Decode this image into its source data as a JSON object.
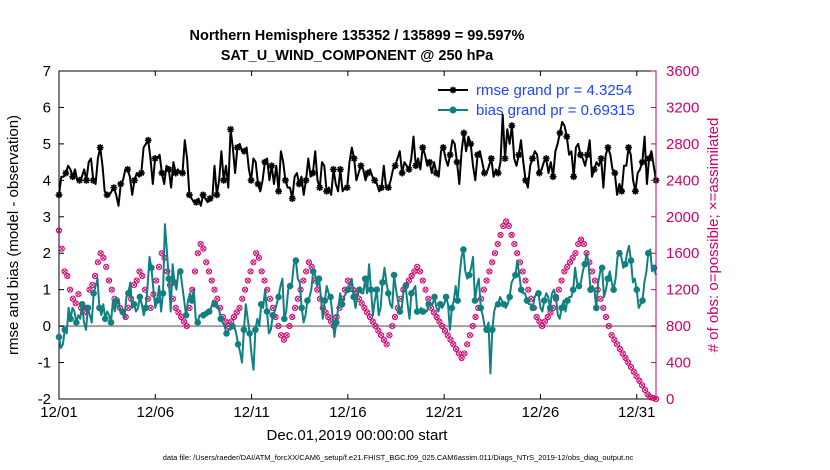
{
  "chart_data": {
    "type": "line",
    "title": "Northern Hemisphere 135352 / 135899 = 99.597%",
    "subtitle": "SAT_U_WIND_COMPONENT @ 250 hPa",
    "xlabel": "Dec.01,2019 00:00:00 start",
    "ylabel": "rmse and bias (model - observation)",
    "ylabel_right": "# of obs: o=possible; ×=assimilated",
    "footnote": "data file: /Users/raeder/DAI/ATM_forcXX/CAM6_setup/f.e21.FHIST_BGC.f09_025.CAM6assim.011/Diags_NTrS_2019-12/obs_diag_output.nc",
    "xlim": [
      1,
      32
    ],
    "ylim": [
      -2,
      7
    ],
    "ylim_right": [
      0,
      3600
    ],
    "x_ticks": [
      1,
      6,
      11,
      16,
      21,
      26,
      31
    ],
    "x_tick_labels": [
      "12/01",
      "12/06",
      "12/11",
      "12/16",
      "12/21",
      "12/26",
      "12/31"
    ],
    "y_ticks": [
      -2,
      -1,
      0,
      1,
      2,
      3,
      4,
      5,
      6,
      7
    ],
    "y_tick_labels": [
      "-2",
      "-1",
      "0",
      "1",
      "2",
      "3",
      "4",
      "5",
      "6",
      "7"
    ],
    "y2_ticks": [
      0,
      400,
      800,
      1200,
      1600,
      2000,
      2400,
      2800,
      3200,
      3600
    ],
    "y2_tick_labels": [
      "0",
      "400",
      "800",
      "1200",
      "1600",
      "2000",
      "2400",
      "2800",
      "3200",
      "3600"
    ],
    "legend": [
      {
        "label": "rmse grand pr = 4.3254",
        "color": "#000000",
        "marker": "star"
      },
      {
        "label": "bias grand pr = 0.69315",
        "color": "#118080",
        "marker": "circle"
      }
    ],
    "legend_location": "top-right",
    "series": [
      {
        "name": "rmse",
        "color": "#000000",
        "values": [
          3.6,
          4.1,
          4.1,
          4.2,
          4.4,
          4.3,
          4.1,
          4.3,
          4.0,
          4.0,
          4.1,
          4.3,
          4.0,
          4.5,
          4.6,
          4.0,
          3.9,
          4.6,
          4.9,
          4.4,
          3.7,
          3.6,
          3.6,
          3.7,
          3.8,
          3.6,
          3.3,
          3.9,
          4.0,
          4.3,
          4.3,
          4.1,
          3.6,
          4.0,
          4.2,
          4.1,
          4.2,
          4.9,
          5.0,
          5.1,
          4.6,
          3.9,
          4.6,
          4.6,
          4.7,
          4.2,
          3.9,
          4.4,
          4.3,
          3.8,
          4.5,
          4.2,
          4.3,
          4.2,
          4.2,
          5.1,
          4.6,
          3.6,
          3.5,
          3.4,
          3.4,
          3.5,
          3.3,
          3.6,
          3.5,
          3.4,
          3.5,
          3.5,
          4.4,
          3.6,
          4.0,
          4.8,
          4.0,
          4.4,
          3.8,
          5.4,
          4.9,
          4.2,
          4.9,
          5.0,
          4.8,
          4.8,
          4.9,
          4.3,
          4.0,
          4.6,
          4.5,
          3.9,
          3.7,
          4.0,
          4.5,
          4.6,
          4.0,
          4.4,
          3.9,
          4.4,
          3.7,
          4.8,
          4.5,
          4.0,
          3.8,
          3.8,
          3.5,
          4.1,
          4.2,
          3.9,
          4.1,
          3.6,
          4.0,
          4.6,
          4.1,
          4.2,
          4.8,
          4.0,
          3.8,
          4.5,
          4.4,
          3.7,
          3.8,
          3.6,
          4.3,
          3.9,
          3.7,
          4.3,
          3.7,
          3.8,
          3.8,
          4.5,
          4.9,
          4.6,
          4.0,
          4.2,
          4.4,
          4.3,
          4.0,
          4.2,
          4.3,
          4.1,
          4.0,
          3.9,
          3.7,
          3.8,
          4.4,
          3.8,
          3.8,
          4.0,
          4.3,
          4.4,
          4.6,
          4.8,
          4.2,
          4.5,
          4.4,
          4.3,
          4.6,
          5.2,
          4.4,
          4.6,
          4.3,
          4.9,
          4.7,
          4.4,
          4.5,
          4.2,
          4.5,
          4.2,
          4.1,
          4.8,
          4.9,
          4.6,
          4.4,
          4.7,
          5.1,
          5.0,
          4.5,
          3.9,
          4.8,
          5.3,
          4.8,
          5.2,
          5.0,
          4.4,
          4.0,
          4.7,
          4.8,
          4.5,
          4.2,
          4.2,
          4.4,
          4.6,
          4.1,
          4.3,
          4.2,
          4.5,
          5.8,
          4.6,
          5.4,
          5.0,
          5.5,
          4.6,
          4.4,
          4.7,
          5.1,
          4.5,
          4.0,
          3.8,
          4.4,
          4.6,
          4.8,
          4.7,
          4.2,
          4.3,
          4.5,
          4.6,
          4.2,
          4.5,
          4.1,
          4.8,
          5.0,
          5.3,
          5.6,
          5.5,
          5.2,
          4.7,
          4.8,
          4.1,
          4.9,
          5.0,
          4.7,
          4.6,
          4.4,
          4.7,
          5.1,
          4.1,
          4.3,
          4.5,
          4.4,
          4.6,
          3.8,
          4.7,
          4.9,
          4.7,
          4.3,
          4.2,
          3.6,
          3.9,
          3.7,
          4.4,
          4.4,
          4.9,
          4.7,
          4.0,
          3.7,
          4.2,
          4.3,
          4.5,
          5.2,
          3.9,
          4.6,
          4.8,
          4.4,
          4.0
        ]
      },
      {
        "name": "bias",
        "color": "#118080",
        "values": [
          -0.3,
          -0.6,
          -0.5,
          -0.1,
          -0.2,
          0.5,
          0.2,
          0.5,
          0.4,
          0.1,
          0.3,
          0.2,
          0.6,
          0.1,
          -0.1,
          0.5,
          0.3,
          0.1,
          0.9,
          1.1,
          1.3,
          0.5,
          0.3,
          0.6,
          0.2,
          0.4,
          0.3,
          0.1,
          0.7,
          0.4,
          0.7,
          0.6,
          0.4,
          0.4,
          0.2,
          0.8,
          0.9,
          1.2,
          0.5,
          0.6,
          0.4,
          0.5,
          0.8,
          0.6,
          0.3,
          0.5,
          1.1,
          1.9,
          1.6,
          1.0,
          0.5,
          0.7,
          1.1,
          0.4,
          0.9,
          2.8,
          2.1,
          1.3,
          0.4,
          1.7,
          1.2,
          1.0,
          1.5,
          1.5,
          1.1,
          0.7,
          0.3,
          0.7,
          0.9,
          0.7,
          1.0,
          0.2,
          0.1,
          0.3,
          0.3,
          0.3,
          0.4,
          0.3,
          0.4,
          0.5,
          0.7,
          0.6,
          0.5,
          0.5,
          0.2,
          0.1,
          0.0,
          -0.2,
          -0.1,
          -0.1,
          0.0,
          0.0,
          -0.2,
          -0.5,
          -0.7,
          -1.0,
          -0.1,
          0.6,
          0.2,
          -0.2,
          -0.8,
          -1.2,
          -0.1,
          0.2,
          0.0,
          0.6,
          0.5,
          1.0,
          0.4,
          -0.2,
          -0.1,
          0.3,
          0.4,
          0.6,
          0.8,
          1.1,
          1.3,
          0.2,
          0.4,
          1.0,
          1.1,
          1.2,
          1.7,
          1.8,
          1.3,
          1.2,
          0.5,
          0.1,
          0.3,
          0.7,
          0.8,
          1.0,
          1.5,
          1.4,
          1.1,
          1.3,
          0.8,
          0.2,
          0.7,
          1.1,
          0.9,
          0.8,
          0.3,
          -0.3,
          0.1,
          0.5,
          0.9,
          0.6,
          0.8,
          0.9,
          1.0,
          1.1,
          1.3,
          0.8,
          0.5,
          0.9,
          1.0,
          0.9,
          0.9,
          1.3,
          0.9,
          1.7,
          1.0,
          0.3,
          0.7,
          1.0,
          0.3,
          0.5,
          1.2,
          1.6,
          1.2,
          0.9,
          0.6,
          0.5,
          1.4,
          1.0,
          0.7,
          0.4,
          0.5,
          1.0,
          1.1,
          0.6,
          0.2,
          0.9,
          1.0,
          1.1,
          0.4,
          0.4,
          0.5,
          0.4,
          0.4,
          0.4,
          0.6,
          0.6,
          0.6,
          0.8,
          0.5,
          0.4,
          0.6,
          0.5,
          0.6,
          0.8,
          0.6,
          -0.1,
          0.5,
          0.7,
          1.1,
          0.7,
          1.4,
          1.9,
          2.1,
          1.5,
          1.3,
          1.4,
          1.6,
          1.9,
          0.7,
          1.1,
          1.3,
          0.5,
          0.3,
          0.0,
          -0.1,
          0.1,
          -1.3,
          -0.1,
          0.4,
          0.6,
          0.6,
          0.8,
          0.7,
          0.6,
          0.5,
          0.6,
          0.8,
          1.2,
          1.3,
          1.4,
          1.8,
          1.4,
          1.0,
          0.9,
          0.9,
          0.7,
          0.6,
          0.6,
          0.5,
          0.8,
          0.9,
          0.9,
          0.5,
          0.4,
          0.7,
          0.9,
          0.8,
          0.5,
          0.9,
          1.0,
          0.8,
          0.3,
          0.2,
          0.5,
          0.7,
          0.4,
          0.7,
          0.8,
          0.8,
          1.0,
          1.6,
          1.2,
          1.1,
          1.2,
          1.5,
          1.7,
          2.0,
          1.7,
          1.0,
          1.1,
          1.0,
          0.5,
          1.2,
          1.5,
          1.6,
          0.8,
          1.0,
          1.3,
          1.5,
          1.2,
          1.0,
          1.3,
          1.9,
          2.0,
          1.9,
          1.6,
          1.7,
          2.0,
          2.2,
          1.8,
          1.2,
          1.3,
          1.0,
          0.5,
          0.6,
          0.7,
          1.2,
          1.5,
          2.0,
          2.1,
          1.5,
          1.6,
          1.4
        ]
      }
    ],
    "obs_possible": [
      1850,
      1650,
      1400,
      1350,
      1200,
      1100,
      1050,
      1150,
      1000,
      950,
      1000,
      1200,
      1250,
      1350,
      1500,
      1600,
      1550,
      1450,
      1300,
      1200,
      1100,
      1050,
      1000,
      950,
      900,
      1000,
      1100,
      1250,
      1300,
      1400,
      1350,
      1200,
      1100,
      1000,
      1150,
      1300,
      1450,
      1600,
      1550,
      1400,
      1250,
      1100,
      1000,
      950,
      900,
      850,
      800,
      1000,
      1200,
      1400,
      1600,
      1700,
      1650,
      1500,
      1400,
      1300,
      1200,
      1100,
      1000,
      900,
      850,
      800,
      850,
      900,
      950,
      1000,
      1100,
      1200,
      1300,
      1400,
      1500,
      1600,
      1550,
      1400,
      1300,
      1200,
      1100,
      1000,
      900,
      800,
      700,
      650,
      700,
      800,
      900,
      1000,
      1100,
      1200,
      1300,
      1400,
      1500,
      1450,
      1300,
      1200,
      1100,
      1000,
      950,
      900,
      850,
      800,
      900,
      1000,
      1100,
      1200,
      1300,
      1250,
      1200,
      1150,
      1100,
      1050,
      1000,
      950,
      900,
      850,
      800,
      750,
      700,
      650,
      600,
      700,
      800,
      900,
      1000,
      1100,
      1200,
      1250,
      1300,
      1350,
      1400,
      1450,
      1400,
      1300,
      1200,
      1100,
      1000,
      950,
      900,
      850,
      800,
      750,
      700,
      650,
      600,
      550,
      500,
      450,
      500,
      600,
      700,
      800,
      900,
      1000,
      1100,
      1200,
      1300,
      1400,
      1500,
      1600,
      1700,
      1800,
      1900,
      1950,
      1900,
      1800,
      1700,
      1600,
      1500,
      1400,
      1300,
      1200,
      1100,
      1000,
      900,
      850,
      800,
      850,
      900,
      950,
      1000,
      1100,
      1200,
      1300,
      1400,
      1450,
      1500,
      1550,
      1600,
      1700,
      1750,
      1700,
      1600,
      1500,
      1400,
      1300,
      1200,
      1100,
      1000,
      900,
      800,
      700,
      650,
      600,
      550,
      500,
      450,
      400,
      350,
      300,
      250,
      200,
      150,
      100,
      50,
      20,
      10,
      0
    ]
  }
}
